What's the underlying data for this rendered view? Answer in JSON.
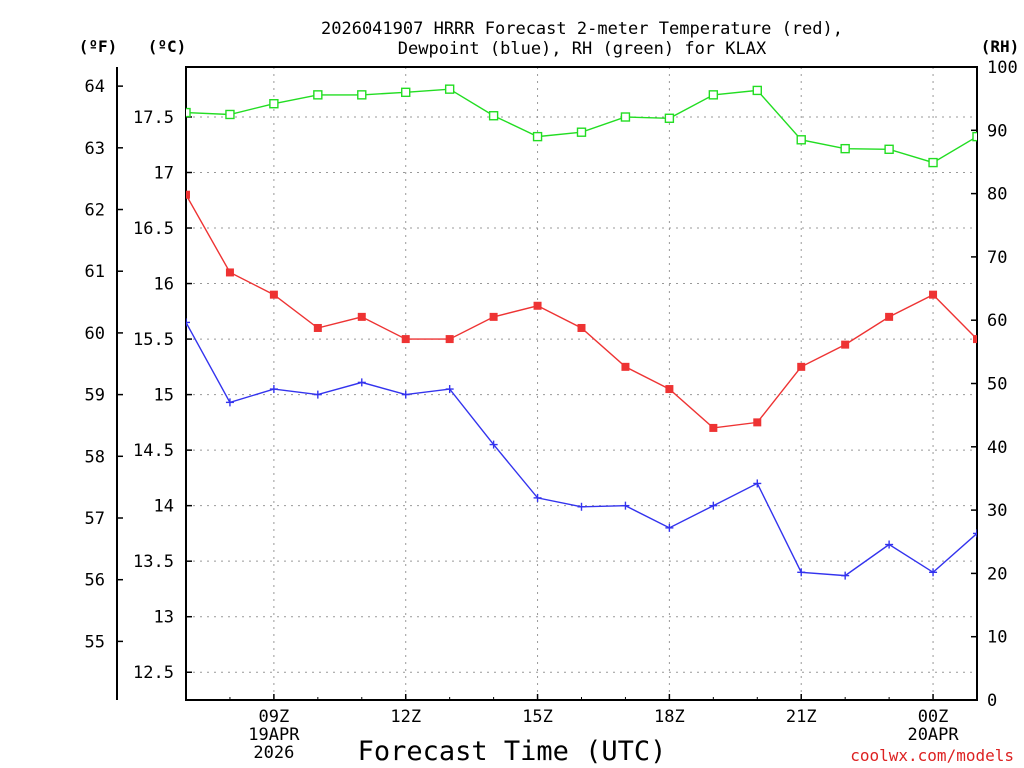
{
  "chart_data": {
    "type": "line",
    "title_line1": "2026041907 HRRR Forecast 2-meter Temperature (red),",
    "title_line2": "Dewpoint (blue), RH (green) for KLAX",
    "xlabel": "Forecast Time (UTC)",
    "unit_f": "(ºF)",
    "unit_c": "(ºC)",
    "unit_rh": "(RH)",
    "credit": "coolwx.com/models",
    "x_hours": [
      7,
      8,
      9,
      10,
      11,
      12,
      13,
      14,
      15,
      16,
      17,
      18,
      19,
      20,
      21,
      22,
      23,
      24,
      25
    ],
    "xlim": [
      7,
      25
    ],
    "x_ticks": [
      {
        "hour": 9,
        "line1": "09Z",
        "line2": "19APR",
        "line3": "2026"
      },
      {
        "hour": 12,
        "line1": "12Z",
        "line2": "",
        "line3": ""
      },
      {
        "hour": 15,
        "line1": "15Z",
        "line2": "",
        "line3": ""
      },
      {
        "hour": 18,
        "line1": "18Z",
        "line2": "",
        "line3": ""
      },
      {
        "hour": 21,
        "line1": "21Z",
        "line2": "",
        "line3": ""
      },
      {
        "hour": 24,
        "line1": "00Z",
        "line2": "20APR",
        "line3": ""
      }
    ],
    "celsius_ylim": [
      12.25,
      17.95
    ],
    "celsius_ticks": [
      "12.5",
      "13",
      "13.5",
      "14",
      "14.5",
      "15",
      "15.5",
      "16",
      "16.5",
      "17",
      "17.5"
    ],
    "fahrenheit_ticks": [
      "55",
      "56",
      "57",
      "58",
      "59",
      "60",
      "61",
      "62",
      "63",
      "64"
    ],
    "rh_ylim": [
      0,
      100
    ],
    "rh_ticks": [
      "0",
      "10",
      "20",
      "30",
      "40",
      "50",
      "60",
      "70",
      "80",
      "90",
      "100"
    ],
    "series": [
      {
        "name": "Temperature",
        "unit": "C",
        "color": "#ee3333",
        "marker": "filled-square",
        "values": [
          16.8,
          16.1,
          15.9,
          15.6,
          15.7,
          15.5,
          15.5,
          15.7,
          15.8,
          15.6,
          15.25,
          15.05,
          14.7,
          14.75,
          15.25,
          15.45,
          15.7,
          15.9,
          15.5
        ]
      },
      {
        "name": "Dewpoint",
        "unit": "C",
        "color": "#3333ee",
        "marker": "plus",
        "values": [
          15.65,
          14.93,
          15.05,
          15.0,
          15.11,
          15.0,
          15.05,
          14.55,
          14.07,
          13.99,
          14.0,
          13.8,
          14.0,
          14.2,
          13.4,
          13.37,
          13.65,
          13.4,
          13.75
        ]
      },
      {
        "name": "RH",
        "unit": "%",
        "color": "#22dd22",
        "marker": "open-square",
        "values": [
          92.8,
          92.5,
          94.2,
          95.6,
          95.6,
          96.0,
          96.5,
          92.3,
          89.0,
          89.7,
          92.1,
          91.9,
          95.6,
          96.3,
          88.5,
          87.1,
          87.0,
          84.9,
          89.0
        ]
      }
    ]
  }
}
